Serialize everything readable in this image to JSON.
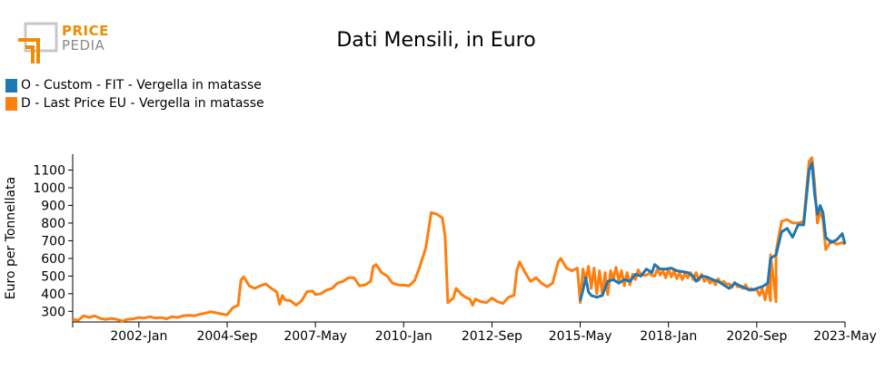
{
  "logo": {
    "line1": "PRICE",
    "line2": "PEDIA"
  },
  "chart_data": {
    "type": "line",
    "title": "Dati Mensili, in Euro",
    "xlabel": "",
    "ylabel": "Euro per Tonnellata",
    "xlim": [
      "2000-01",
      "2023-05"
    ],
    "ylim": [
      240,
      1190
    ],
    "yticks": [
      300,
      400,
      500,
      600,
      700,
      800,
      900,
      1000,
      1100
    ],
    "xticks": [
      {
        "label": "2002-Jan",
        "value": "2002-01"
      },
      {
        "label": "2004-Sep",
        "value": "2004-09"
      },
      {
        "label": "2007-May",
        "value": "2007-05"
      },
      {
        "label": "2010-Jan",
        "value": "2010-01"
      },
      {
        "label": "2012-Sep",
        "value": "2012-09"
      },
      {
        "label": "2015-May",
        "value": "2015-05"
      },
      {
        "label": "2018-Jan",
        "value": "2018-01"
      },
      {
        "label": "2020-Sep",
        "value": "2020-09"
      },
      {
        "label": "2023-May",
        "value": "2023-05"
      }
    ],
    "grid": false,
    "legend_position": "top-left",
    "series": [
      {
        "name": "D - Last Price EU - Vergella in matasse",
        "color": "#ff7f0e",
        "points": [
          [
            "2000-01",
            255
          ],
          [
            "2000-03",
            250
          ],
          [
            "2000-05",
            275
          ],
          [
            "2000-07",
            265
          ],
          [
            "2000-09",
            275
          ],
          [
            "2000-11",
            260
          ],
          [
            "2001-01",
            255
          ],
          [
            "2001-03",
            260
          ],
          [
            "2001-05",
            255
          ],
          [
            "2001-07",
            245
          ],
          [
            "2001-09",
            255
          ],
          [
            "2001-11",
            258
          ],
          [
            "2002-01",
            265
          ],
          [
            "2002-03",
            262
          ],
          [
            "2002-05",
            270
          ],
          [
            "2002-07",
            262
          ],
          [
            "2002-09",
            265
          ],
          [
            "2002-11",
            258
          ],
          [
            "2003-01",
            270
          ],
          [
            "2003-03",
            265
          ],
          [
            "2003-05",
            275
          ],
          [
            "2003-07",
            278
          ],
          [
            "2003-09",
            275
          ],
          [
            "2003-11",
            283
          ],
          [
            "2004-01",
            290
          ],
          [
            "2004-03",
            298
          ],
          [
            "2004-05",
            292
          ],
          [
            "2004-07",
            285
          ],
          [
            "2004-09",
            280
          ],
          [
            "2004-11",
            320
          ],
          [
            "2005-01",
            335
          ],
          [
            "2005-02",
            478
          ],
          [
            "2005-03",
            495
          ],
          [
            "2005-05",
            445
          ],
          [
            "2005-07",
            430
          ],
          [
            "2005-09",
            445
          ],
          [
            "2005-11",
            455
          ],
          [
            "2006-01",
            430
          ],
          [
            "2006-03",
            410
          ],
          [
            "2006-04",
            340
          ],
          [
            "2006-05",
            390
          ],
          [
            "2006-06",
            365
          ],
          [
            "2006-08",
            360
          ],
          [
            "2006-10",
            335
          ],
          [
            "2006-12",
            360
          ],
          [
            "2007-02",
            412
          ],
          [
            "2007-04",
            415
          ],
          [
            "2007-05",
            395
          ],
          [
            "2007-07",
            400
          ],
          [
            "2007-09",
            420
          ],
          [
            "2007-11",
            430
          ],
          [
            "2008-01",
            460
          ],
          [
            "2008-03",
            470
          ],
          [
            "2008-05",
            490
          ],
          [
            "2008-07",
            490
          ],
          [
            "2008-09",
            445
          ],
          [
            "2008-11",
            450
          ],
          [
            "2009-01",
            470
          ],
          [
            "2009-02",
            555
          ],
          [
            "2009-03",
            565
          ],
          [
            "2009-05",
            520
          ],
          [
            "2009-07",
            500
          ],
          [
            "2009-09",
            460
          ],
          [
            "2009-11",
            450
          ],
          [
            "2010-01",
            448
          ],
          [
            "2010-03",
            445
          ],
          [
            "2010-05",
            475
          ],
          [
            "2010-07",
            560
          ],
          [
            "2010-09",
            660
          ],
          [
            "2010-11",
            860
          ],
          [
            "2011-01",
            850
          ],
          [
            "2011-03",
            830
          ],
          [
            "2011-04",
            730
          ],
          [
            "2011-05",
            350
          ],
          [
            "2011-07",
            375
          ],
          [
            "2011-08",
            430
          ],
          [
            "2011-10",
            395
          ],
          [
            "2011-12",
            375
          ],
          [
            "2012-01",
            370
          ],
          [
            "2012-02",
            335
          ],
          [
            "2012-03",
            370
          ],
          [
            "2012-05",
            355
          ],
          [
            "2012-07",
            350
          ],
          [
            "2012-09",
            375
          ],
          [
            "2012-11",
            355
          ],
          [
            "2013-01",
            345
          ],
          [
            "2013-03",
            380
          ],
          [
            "2013-05",
            390
          ],
          [
            "2013-06",
            530
          ],
          [
            "2013-07",
            580
          ],
          [
            "2013-09",
            520
          ],
          [
            "2013-11",
            470
          ],
          [
            "2014-01",
            490
          ],
          [
            "2014-03",
            460
          ],
          [
            "2014-05",
            440
          ],
          [
            "2014-07",
            460
          ],
          [
            "2014-09",
            580
          ],
          [
            "2014-10",
            600
          ],
          [
            "2014-12",
            545
          ],
          [
            "2015-02",
            530
          ],
          [
            "2015-04",
            545
          ],
          [
            "2015-06",
            540
          ],
          [
            "2015-08",
            555
          ],
          [
            "2015-10",
            545
          ],
          [
            "2015-12",
            530
          ],
          [
            "2016-02",
            520
          ],
          [
            "2016-04",
            530
          ],
          [
            "2016-06",
            550
          ],
          [
            "2016-08",
            530
          ],
          [
            "2016-10",
            520
          ],
          [
            "2016-12",
            510
          ],
          [
            "2017-02",
            535
          ],
          [
            "2017-04",
            505
          ],
          [
            "2017-06",
            515
          ],
          [
            "2017-08",
            500
          ],
          [
            "2017-10",
            505
          ],
          [
            "2017-12",
            490
          ],
          [
            "2018-02",
            495
          ],
          [
            "2018-04",
            485
          ],
          [
            "2018-06",
            480
          ],
          [
            "2018-08",
            490
          ],
          [
            "2018-10",
            480
          ],
          [
            "2018-12",
            475
          ],
          [
            "2019-02",
            470
          ],
          [
            "2019-04",
            460
          ],
          [
            "2019-06",
            450
          ],
          [
            "2019-08",
            460
          ],
          [
            "2019-10",
            455
          ],
          [
            "2019-12",
            435
          ],
          [
            "2020-02",
            440
          ],
          [
            "2020-04",
            430
          ],
          [
            "2020-06",
            420
          ],
          [
            "2020-08",
            420
          ],
          [
            "2020-10",
            390
          ],
          [
            "2020-12",
            365
          ],
          [
            "2021-02",
            360
          ],
          [
            "2021-04",
            355
          ],
          [
            "2015-05",
            350
          ],
          [
            "2015-07",
            470
          ],
          [
            "2015-09",
            430
          ],
          [
            "2015-11",
            400
          ],
          [
            "2016-01",
            390
          ],
          [
            "2016-03",
            395
          ],
          [
            "2016-05",
            480
          ],
          [
            "2016-07",
            470
          ],
          [
            "2016-09",
            445
          ],
          [
            "2016-11",
            450
          ],
          [
            "2017-01",
            480
          ],
          [
            "2017-03",
            510
          ],
          [
            "2017-05",
            505
          ],
          [
            "2017-07",
            505
          ],
          [
            "2017-09",
            540
          ],
          [
            "2017-11",
            530
          ],
          [
            "2018-01",
            540
          ],
          [
            "2018-03",
            530
          ],
          [
            "2018-05",
            520
          ],
          [
            "2018-07",
            515
          ],
          [
            "2018-09",
            520
          ],
          [
            "2018-11",
            520
          ],
          [
            "2019-01",
            510
          ],
          [
            "2019-03",
            490
          ],
          [
            "2019-05",
            480
          ],
          [
            "2019-07",
            485
          ],
          [
            "2019-09",
            470
          ],
          [
            "2019-11",
            455
          ],
          [
            "2020-01",
            465
          ],
          [
            "2020-03",
            440
          ],
          [
            "2020-05",
            450
          ],
          [
            "2020-07",
            430
          ],
          [
            "2020-09",
            425
          ],
          [
            "2020-11",
            430
          ],
          [
            "2021-01",
            450
          ],
          [
            "2021-02",
            620
          ],
          [
            "2021-04",
            640
          ],
          [
            "2021-06",
            810
          ],
          [
            "2021-08",
            820
          ],
          [
            "2021-10",
            800
          ],
          [
            "2021-12",
            800
          ],
          [
            "2022-02",
            810
          ],
          [
            "2022-04",
            1150
          ],
          [
            "2022-05",
            1170
          ],
          [
            "2022-06",
            1020
          ],
          [
            "2022-07",
            800
          ],
          [
            "2022-08",
            870
          ],
          [
            "2022-09",
            820
          ],
          [
            "2022-10",
            650
          ],
          [
            "2022-12",
            700
          ],
          [
            "2023-02",
            680
          ],
          [
            "2023-04",
            690
          ],
          [
            "2023-05",
            680
          ]
        ]
      },
      {
        "name": "O - Custom - FIT - Vergella in matasse",
        "color": "#1f77b4",
        "points": [
          [
            "2015-05",
            360
          ],
          [
            "2015-06",
            420
          ],
          [
            "2015-07",
            490
          ],
          [
            "2015-08",
            410
          ],
          [
            "2015-09",
            390
          ],
          [
            "2015-11",
            380
          ],
          [
            "2016-01",
            390
          ],
          [
            "2016-03",
            470
          ],
          [
            "2016-05",
            480
          ],
          [
            "2016-07",
            460
          ],
          [
            "2016-09",
            480
          ],
          [
            "2016-11",
            470
          ],
          [
            "2017-01",
            510
          ],
          [
            "2017-03",
            500
          ],
          [
            "2017-05",
            540
          ],
          [
            "2017-07",
            520
          ],
          [
            "2017-08",
            565
          ],
          [
            "2017-10",
            540
          ],
          [
            "2017-12",
            540
          ],
          [
            "2018-02",
            545
          ],
          [
            "2018-04",
            530
          ],
          [
            "2018-06",
            525
          ],
          [
            "2018-08",
            520
          ],
          [
            "2018-10",
            500
          ],
          [
            "2018-11",
            470
          ],
          [
            "2019-01",
            500
          ],
          [
            "2019-03",
            495
          ],
          [
            "2019-05",
            480
          ],
          [
            "2019-07",
            470
          ],
          [
            "2019-09",
            450
          ],
          [
            "2019-11",
            430
          ],
          [
            "2020-01",
            460
          ],
          [
            "2020-03",
            445
          ],
          [
            "2020-05",
            430
          ],
          [
            "2020-07",
            420
          ],
          [
            "2020-09",
            430
          ],
          [
            "2020-11",
            440
          ],
          [
            "2021-01",
            460
          ],
          [
            "2021-02",
            600
          ],
          [
            "2021-04",
            620
          ],
          [
            "2021-06",
            750
          ],
          [
            "2021-08",
            770
          ],
          [
            "2021-10",
            720
          ],
          [
            "2021-12",
            790
          ],
          [
            "2022-02",
            790
          ],
          [
            "2022-04",
            1100
          ],
          [
            "2022-05",
            1140
          ],
          [
            "2022-06",
            960
          ],
          [
            "2022-07",
            850
          ],
          [
            "2022-08",
            900
          ],
          [
            "2022-09",
            860
          ],
          [
            "2022-10",
            720
          ],
          [
            "2022-12",
            690
          ],
          [
            "2023-02",
            705
          ],
          [
            "2023-04",
            740
          ],
          [
            "2023-05",
            680
          ]
        ]
      }
    ]
  }
}
